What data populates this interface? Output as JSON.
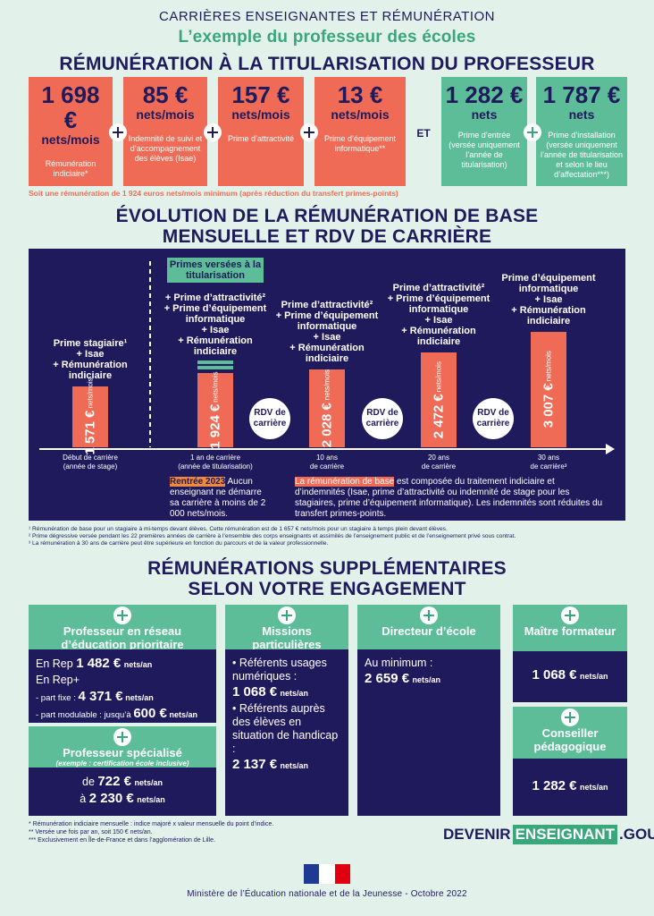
{
  "header": {
    "kicker": "CARRIÈRES ENSEIGNANTES ET RÉMUNÉRATION",
    "subtitle": "L’exemple du professeur des écoles",
    "title": "RÉMUNÉRATION À LA TITULARISATION DU PROFESSEUR"
  },
  "titularisation": {
    "orange_boxes": [
      {
        "amount": "1 698 €",
        "unit": "nets/mois",
        "label": "Rémunération indiciaire*"
      },
      {
        "amount": "85 €",
        "unit": "nets/mois",
        "label": "Indemnité de suivi et d’accompagnement des élèves (Isae)"
      },
      {
        "amount": "157 €",
        "unit": "nets/mois",
        "label": "Prime d’attractivité"
      },
      {
        "amount": "13 €",
        "unit": "nets/mois",
        "label": "Prime d’équipement informatique**"
      }
    ],
    "and": "ET",
    "green_boxes": [
      {
        "amount": "1 282 €",
        "unit": "nets",
        "label": "Prime d’entrée (versée uniquement l’année de titularisation)"
      },
      {
        "amount": "1 787 €",
        "unit": "nets",
        "label": "Prime d’installation (versée uniquement l’année de titularisation et selon le lieu d’affectation***)"
      }
    ],
    "note": "Soit une rémunération de 1 924 euros nets/mois minimum (après réduction du transfert primes-points)"
  },
  "career": {
    "title_lines": [
      "ÉVOLUTION DE LA RÉMUNÉRATION DE BASE",
      "MENSUELLE ET RDV DE CARRIÈRE"
    ],
    "steps": [
      {
        "bonuses": [
          "Prime stagiaire¹",
          "+ Isae",
          "+ Rémunération indiciaire"
        ],
        "amount": {
          "value": 1571,
          "label": "1 571 €"
        },
        "unit": "nets/mois",
        "when": [
          "Début de carrière",
          "(année de stage)"
        ]
      },
      {
        "badge": "Primes versées à la titularisation",
        "bonuses": [
          "+ Prime d’attractivité²",
          "+ Prime d’équipement informatique",
          "+ Isae",
          "+ Rémunération indiciaire"
        ],
        "amount": {
          "value": 1924,
          "label": "1 924 €"
        },
        "unit": "nets/mois",
        "when": [
          "1 an de carrière",
          "(année de titularisation)"
        ]
      },
      {
        "bonuses": [
          "Prime d’attractivité²",
          "+ Prime d’équipement informatique",
          "+ Isae",
          "+ Rémunération indiciaire"
        ],
        "amount": {
          "value": 2028,
          "label": "2 028 €"
        },
        "unit": "nets/mois",
        "when": [
          "10 ans",
          "de carrière"
        ]
      },
      {
        "bonuses": [
          "Prime d’attractivité²",
          "+ Prime d’équipement informatique",
          "+ Isae",
          "+ Rémunération indiciaire"
        ],
        "amount": {
          "value": 2472,
          "label": "2 472 €"
        },
        "unit": "nets/mois",
        "when": [
          "20 ans",
          "de carrière"
        ]
      },
      {
        "bonuses": [
          "Prime d’équipement informatique",
          "+ Isae",
          "+ Rémunération indiciaire"
        ],
        "amount": {
          "value": 3007,
          "label": "3 007 €"
        },
        "unit": "nets/mois",
        "when": [
          "30 ans",
          "de carrière³"
        ]
      }
    ],
    "rdv": [
      "RDV de carrière",
      "RDV de carrière",
      "RDV de carrière"
    ],
    "note_left": {
      "highlight": "Rentrée 2023",
      "text": "Aucun enseignant ne démarre sa carrière à moins de 2 000 nets/mois."
    },
    "note_right": {
      "highlight": "La rémunération de base",
      "text": "est composée du traitement indiciaire et d’indemnités (Isae, prime d’attractivité ou indemnité de stage pour les stagiaires, prime d’équipement informatique). Les indemnités sont réduites du transfert primes-points."
    },
    "footnotes": [
      "¹ Rémunération de base pour un stagiaire à mi-temps devant élèves. Cette rémunération est de 1 657 € nets/mois pour un stagiaire à temps plein devant élèves.",
      "² Prime dégressive versée pendant les 22 premières années de carrière à l’ensemble des corps enseignants et assimilés de l’enseignement public et de l’enseignement privé sous contrat.",
      "³ La rémunération à 30 ans de carrière peut être supérieure en fonction du parcours et de la valeur professionnelle."
    ]
  },
  "supplements": {
    "title_lines": [
      "RÉMUNÉRATIONS SUPPLÉMENTAIRES",
      "SELON VOTRE ENGAGEMENT"
    ],
    "cards": [
      {
        "title": "Professeur en réseau d’éducation prioritaire",
        "lines": [
          {
            "text": "En Rep",
            "amount": "1 482 €",
            "unit": "nets/an"
          },
          {
            "text": "En Rep+"
          },
          {
            "text": "- part fixe :",
            "amount": "4 371 €",
            "unit": "nets/an",
            "small": true
          },
          {
            "text": "- part modulable : jusqu’à",
            "amount": "600 €",
            "unit": "nets/an",
            "small": true
          }
        ]
      },
      {
        "title": "Professeur spécialisé",
        "subtitle": "(exemple : certification école inclusive)",
        "lines": [
          {
            "text": "de",
            "amount": "722 €",
            "unit": "nets/an"
          },
          {
            "text": "à",
            "amount": "2 230 €",
            "unit": "nets/an"
          }
        ]
      },
      {
        "title": "Missions particulières",
        "lines": [
          {
            "text": "• Référents usages numériques :"
          },
          {
            "amount": "1 068 €",
            "unit": "nets/an"
          },
          {
            "text": "• Référents auprès des élèves en situation de handicap :"
          },
          {
            "amount": "2 137 €",
            "unit": "nets/an"
          }
        ]
      },
      {
        "title": "Directeur d’école",
        "lines": [
          {
            "text": "Au minimum :"
          },
          {
            "amount": "2 659 €",
            "unit": "nets/an"
          }
        ]
      },
      {
        "title": "Maître formateur",
        "lines": [
          {
            "amount": "1 068 €",
            "unit": "nets/an"
          }
        ]
      },
      {
        "title": "Conseiller pédagogique",
        "lines": [
          {
            "amount": "1 282 €",
            "unit": "nets/an"
          }
        ]
      }
    ]
  },
  "footer": {
    "notes": [
      "* Rémunération indiciaire mensuelle : indice majoré x valeur mensuelle du point d’indice.",
      "** Versée une fois par an, soit 150 € nets/an.",
      "*** Exclusivement en Île-de-France et dans l’agglomération de Lille."
    ],
    "brand": {
      "pre": "DEVENIR",
      "box": "ENSEIGNANT",
      "post": ".GOUV.FR"
    },
    "ministry": "Ministère de l’Éducation nationale et de la Jeunesse - Octobre 2022"
  }
}
